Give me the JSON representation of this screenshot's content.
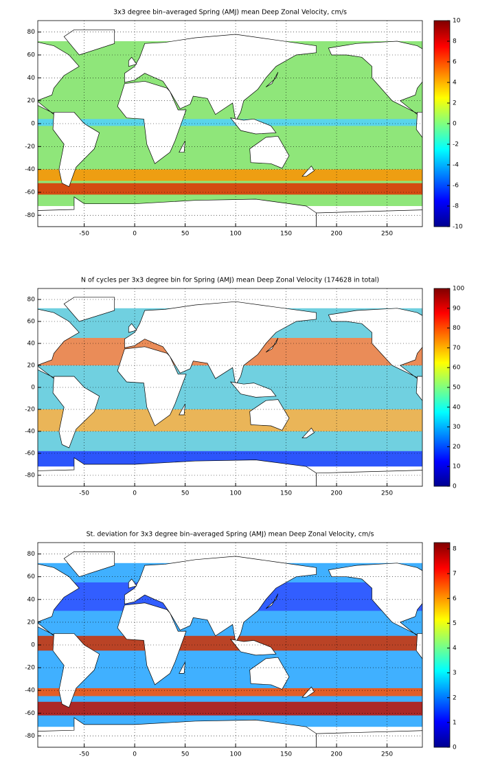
{
  "chart_data": [
    {
      "type": "heatmap",
      "title": "3x3 degree bin–averaged Spring (AMJ) mean Deep Zonal Velocity, cm/s",
      "xlim": [
        -96,
        285
      ],
      "xticks": [
        -50,
        0,
        50,
        100,
        150,
        200,
        250
      ],
      "ylim": [
        -90,
        90
      ],
      "yticks": [
        -80,
        -60,
        -40,
        -20,
        0,
        20,
        40,
        60,
        80
      ],
      "grid": true,
      "colormap": "jet",
      "clim": [
        -10,
        10
      ],
      "cticks": [
        -10,
        -8,
        -6,
        -4,
        -2,
        0,
        2,
        4,
        6,
        8,
        10
      ]
    },
    {
      "type": "heatmap",
      "title": "N of cycles per 3x3 degree bin for Spring (AMJ) mean Deep Zonal Velocity (174628 in total)",
      "xlim": [
        -96,
        285
      ],
      "xticks": [
        -50,
        0,
        50,
        100,
        150,
        200,
        250
      ],
      "ylim": [
        -90,
        90
      ],
      "yticks": [
        -80,
        -60,
        -40,
        -20,
        0,
        20,
        40,
        60,
        80
      ],
      "grid": true,
      "colormap": "jet",
      "clim": [
        0,
        100
      ],
      "cticks": [
        0,
        10,
        20,
        30,
        40,
        50,
        60,
        70,
        80,
        90,
        100
      ]
    },
    {
      "type": "heatmap",
      "title": "St. deviation for 3x3 degree bin–averaged Spring (AMJ) mean Deep Zonal Velocity, cm/s",
      "xlim": [
        -96,
        285
      ],
      "xticks": [
        -50,
        0,
        50,
        100,
        150,
        200,
        250
      ],
      "ylim": [
        -90,
        90
      ],
      "yticks": [
        -80,
        -60,
        -40,
        -20,
        0,
        20,
        40,
        60,
        80
      ],
      "grid": true,
      "colormap": "jet",
      "clim": [
        0,
        8.25
      ],
      "cticks": [
        0,
        1,
        2,
        3,
        4,
        5,
        6,
        7,
        8
      ]
    }
  ]
}
